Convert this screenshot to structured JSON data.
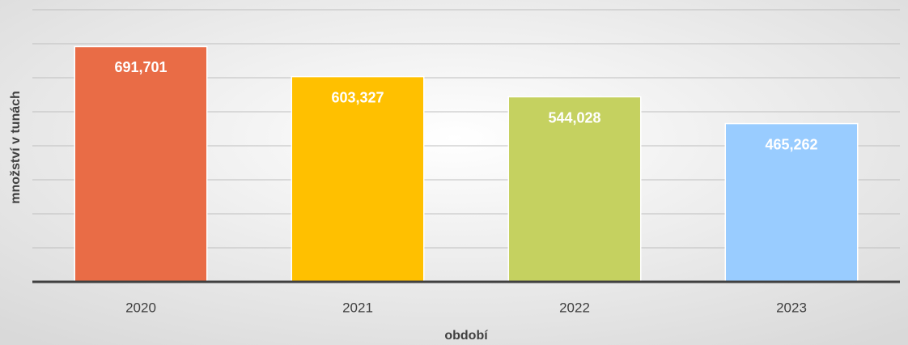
{
  "chart_data": {
    "type": "bar",
    "x_label": "období",
    "y_label": "množství v tunách",
    "categories": [
      "2020",
      "2021",
      "2022",
      "2023"
    ],
    "values": [
      691.701,
      603.327,
      544.028,
      465.262
    ],
    "value_labels": [
      "691,701",
      "603,327",
      "544,028",
      "465,262"
    ],
    "colors": [
      "#e96c46",
      "#ffc000",
      "#c5d160",
      "#99ccff"
    ],
    "ylim": [
      0,
      800
    ],
    "yticks": [
      0,
      100,
      200,
      300,
      400,
      500,
      600,
      700,
      800
    ],
    "grid": true
  }
}
